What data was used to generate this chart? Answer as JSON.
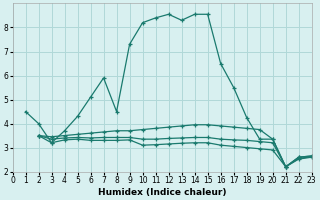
{
  "xlabel": "Humidex (Indice chaleur)",
  "bg_color": "#d8f0f0",
  "grid_color": "#b0d8d8",
  "line_color": "#1a7a6e",
  "xlim": [
    0,
    23
  ],
  "ylim": [
    2,
    9
  ],
  "yticks": [
    2,
    3,
    4,
    5,
    6,
    7,
    8
  ],
  "xticks": [
    0,
    1,
    2,
    3,
    4,
    5,
    6,
    7,
    8,
    9,
    10,
    11,
    12,
    13,
    14,
    15,
    16,
    17,
    18,
    19,
    20,
    21,
    22,
    23
  ],
  "lines": [
    {
      "x": [
        1,
        2,
        3,
        4,
        5,
        6,
        7,
        8,
        9,
        10,
        11,
        12,
        13,
        14,
        15,
        16,
        17,
        18,
        19,
        20,
        21,
        22,
        23
      ],
      "y": [
        4.5,
        4.0,
        3.2,
        3.7,
        4.3,
        5.1,
        5.9,
        4.5,
        7.3,
        8.2,
        8.4,
        8.55,
        8.3,
        8.55,
        8.55,
        6.5,
        5.5,
        4.25,
        3.35,
        3.35,
        2.2,
        2.6,
        2.65
      ]
    },
    {
      "x": [
        2,
        3,
        4,
        5,
        6,
        7,
        8,
        9,
        10,
        11,
        12,
        13,
        14,
        15,
        16,
        17,
        18,
        19,
        20,
        21,
        22,
        23
      ],
      "y": [
        3.5,
        3.45,
        3.5,
        3.55,
        3.6,
        3.65,
        3.7,
        3.7,
        3.75,
        3.8,
        3.85,
        3.9,
        3.95,
        3.95,
        3.9,
        3.85,
        3.8,
        3.75,
        3.35,
        2.2,
        2.6,
        2.65
      ]
    },
    {
      "x": [
        2,
        3,
        4,
        5,
        6,
        7,
        8,
        9,
        10,
        11,
        12,
        13,
        14,
        15,
        16,
        17,
        18,
        19,
        20,
        21,
        22,
        23
      ],
      "y": [
        3.5,
        3.35,
        3.4,
        3.42,
        3.4,
        3.42,
        3.42,
        3.42,
        3.35,
        3.35,
        3.38,
        3.4,
        3.42,
        3.42,
        3.35,
        3.32,
        3.3,
        3.25,
        3.2,
        2.2,
        2.55,
        2.62
      ]
    },
    {
      "x": [
        2,
        3,
        4,
        5,
        6,
        7,
        8,
        9,
        10,
        11,
        12,
        13,
        14,
        15,
        16,
        17,
        18,
        19,
        20,
        21,
        22,
        23
      ],
      "y": [
        3.5,
        3.2,
        3.32,
        3.35,
        3.3,
        3.3,
        3.3,
        3.32,
        3.1,
        3.12,
        3.15,
        3.18,
        3.2,
        3.2,
        3.1,
        3.05,
        3.0,
        2.95,
        2.9,
        2.2,
        2.52,
        2.6
      ]
    }
  ]
}
